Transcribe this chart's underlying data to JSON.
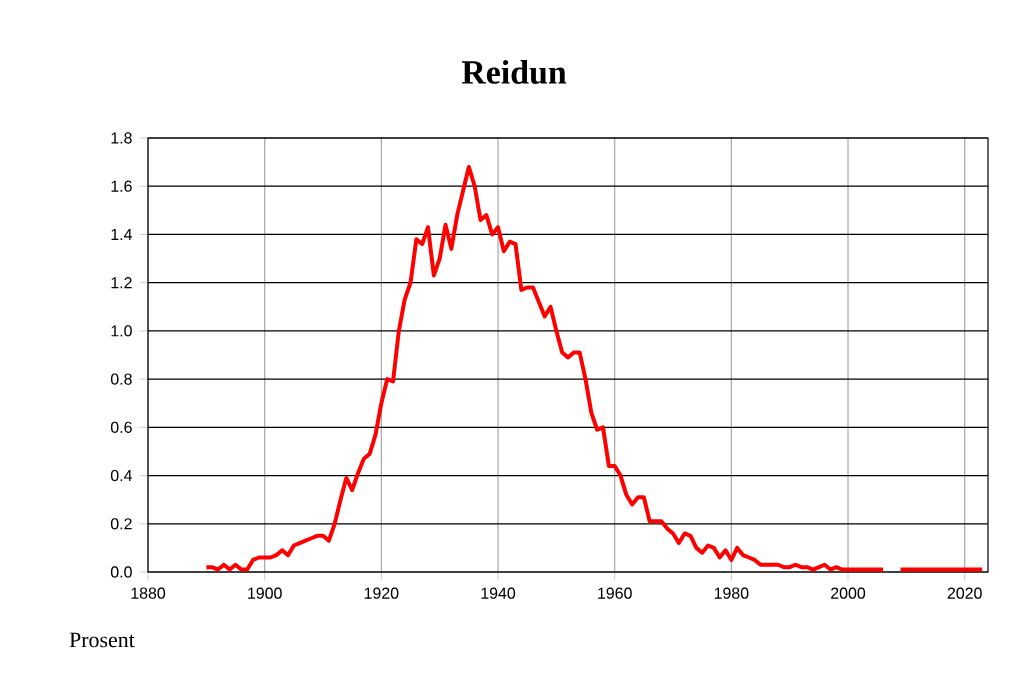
{
  "chart_data": {
    "type": "line",
    "title": "Reidun",
    "ylabel": "Prosent",
    "x": [
      1890,
      1891,
      1892,
      1893,
      1894,
      1895,
      1896,
      1897,
      1898,
      1899,
      1900,
      1901,
      1902,
      1903,
      1904,
      1905,
      1906,
      1907,
      1908,
      1909,
      1910,
      1911,
      1912,
      1913,
      1914,
      1915,
      1916,
      1917,
      1918,
      1919,
      1920,
      1921,
      1922,
      1923,
      1924,
      1925,
      1926,
      1927,
      1928,
      1929,
      1930,
      1931,
      1932,
      1933,
      1934,
      1935,
      1936,
      1937,
      1938,
      1939,
      1940,
      1941,
      1942,
      1943,
      1944,
      1945,
      1946,
      1947,
      1948,
      1949,
      1950,
      1951,
      1952,
      1953,
      1954,
      1955,
      1956,
      1957,
      1958,
      1959,
      1960,
      1961,
      1962,
      1963,
      1964,
      1965,
      1966,
      1967,
      1968,
      1969,
      1970,
      1971,
      1972,
      1973,
      1974,
      1975,
      1976,
      1977,
      1978,
      1979,
      1980,
      1981,
      1982,
      1983,
      1984,
      1985,
      1986,
      1987,
      1988,
      1989,
      1990,
      1991,
      1992,
      1993,
      1994,
      1995,
      1996,
      1997,
      1998,
      1999,
      2000,
      2001,
      2002,
      2003,
      2004,
      2005,
      2006,
      2007,
      2008,
      2009,
      2010,
      2011,
      2012,
      2013,
      2014,
      2015,
      2016,
      2017,
      2018,
      2019,
      2020,
      2021,
      2022,
      2023
    ],
    "series": [
      {
        "color": "#ff0000",
        "values": [
          0.02,
          0.02,
          0.01,
          0.03,
          0.01,
          0.03,
          0.01,
          0.01,
          0.05,
          0.06,
          0.06,
          0.06,
          0.07,
          0.09,
          0.07,
          0.11,
          0.12,
          0.13,
          0.14,
          0.15,
          0.15,
          0.13,
          0.2,
          0.3,
          0.39,
          0.34,
          0.41,
          0.47,
          0.49,
          0.57,
          0.7,
          0.8,
          0.79,
          1.0,
          1.13,
          1.2,
          1.38,
          1.36,
          1.43,
          1.23,
          1.3,
          1.44,
          1.34,
          1.48,
          1.58,
          1.68,
          1.6,
          1.46,
          1.48,
          1.4,
          1.43,
          1.33,
          1.37,
          1.36,
          1.17,
          1.18,
          1.18,
          1.12,
          1.06,
          1.1,
          1.0,
          0.91,
          0.89,
          0.91,
          0.91,
          0.8,
          0.66,
          0.59,
          0.6,
          0.44,
          0.44,
          0.4,
          0.32,
          0.28,
          0.31,
          0.31,
          0.21,
          0.21,
          0.21,
          0.18,
          0.16,
          0.12,
          0.16,
          0.15,
          0.1,
          0.08,
          0.11,
          0.1,
          0.06,
          0.09,
          0.05,
          0.1,
          0.07,
          0.06,
          0.05,
          0.03,
          0.03,
          0.03,
          0.03,
          0.02,
          0.02,
          0.03,
          0.02,
          0.02,
          0.01,
          0.02,
          0.03,
          0.01,
          0.02,
          0.01,
          0.01,
          0.01,
          0.01,
          0.01,
          0.01,
          0.01,
          0.01,
          null,
          null,
          0.01,
          0.01,
          0.01,
          0.01,
          0.01,
          0.01,
          0.01,
          0.01,
          0.01,
          0.01,
          0.01,
          0.01,
          0.01,
          0.01,
          0.01
        ]
      }
    ],
    "xlim": [
      1880,
      2024
    ],
    "ylim": [
      0,
      1.8
    ],
    "xticks": [
      1880,
      1900,
      1920,
      1940,
      1960,
      1980,
      2000,
      2020
    ],
    "yticks": [
      {
        "value": 0,
        "label": "0.0"
      },
      {
        "value": 0.2,
        "label": "0.2"
      },
      {
        "value": 0.4,
        "label": "0.4"
      },
      {
        "value": 0.6,
        "label": "0.6"
      },
      {
        "value": 0.8,
        "label": "0.8"
      },
      {
        "value": 1.0,
        "label": "1.0"
      },
      {
        "value": 1.2,
        "label": "1.2"
      },
      {
        "value": 1.4,
        "label": "1.4"
      },
      {
        "value": 1.6,
        "label": "1.6"
      },
      {
        "value": 1.8,
        "label": "1.8"
      }
    ],
    "grid": true,
    "marker": "none",
    "line_style": "solid"
  }
}
